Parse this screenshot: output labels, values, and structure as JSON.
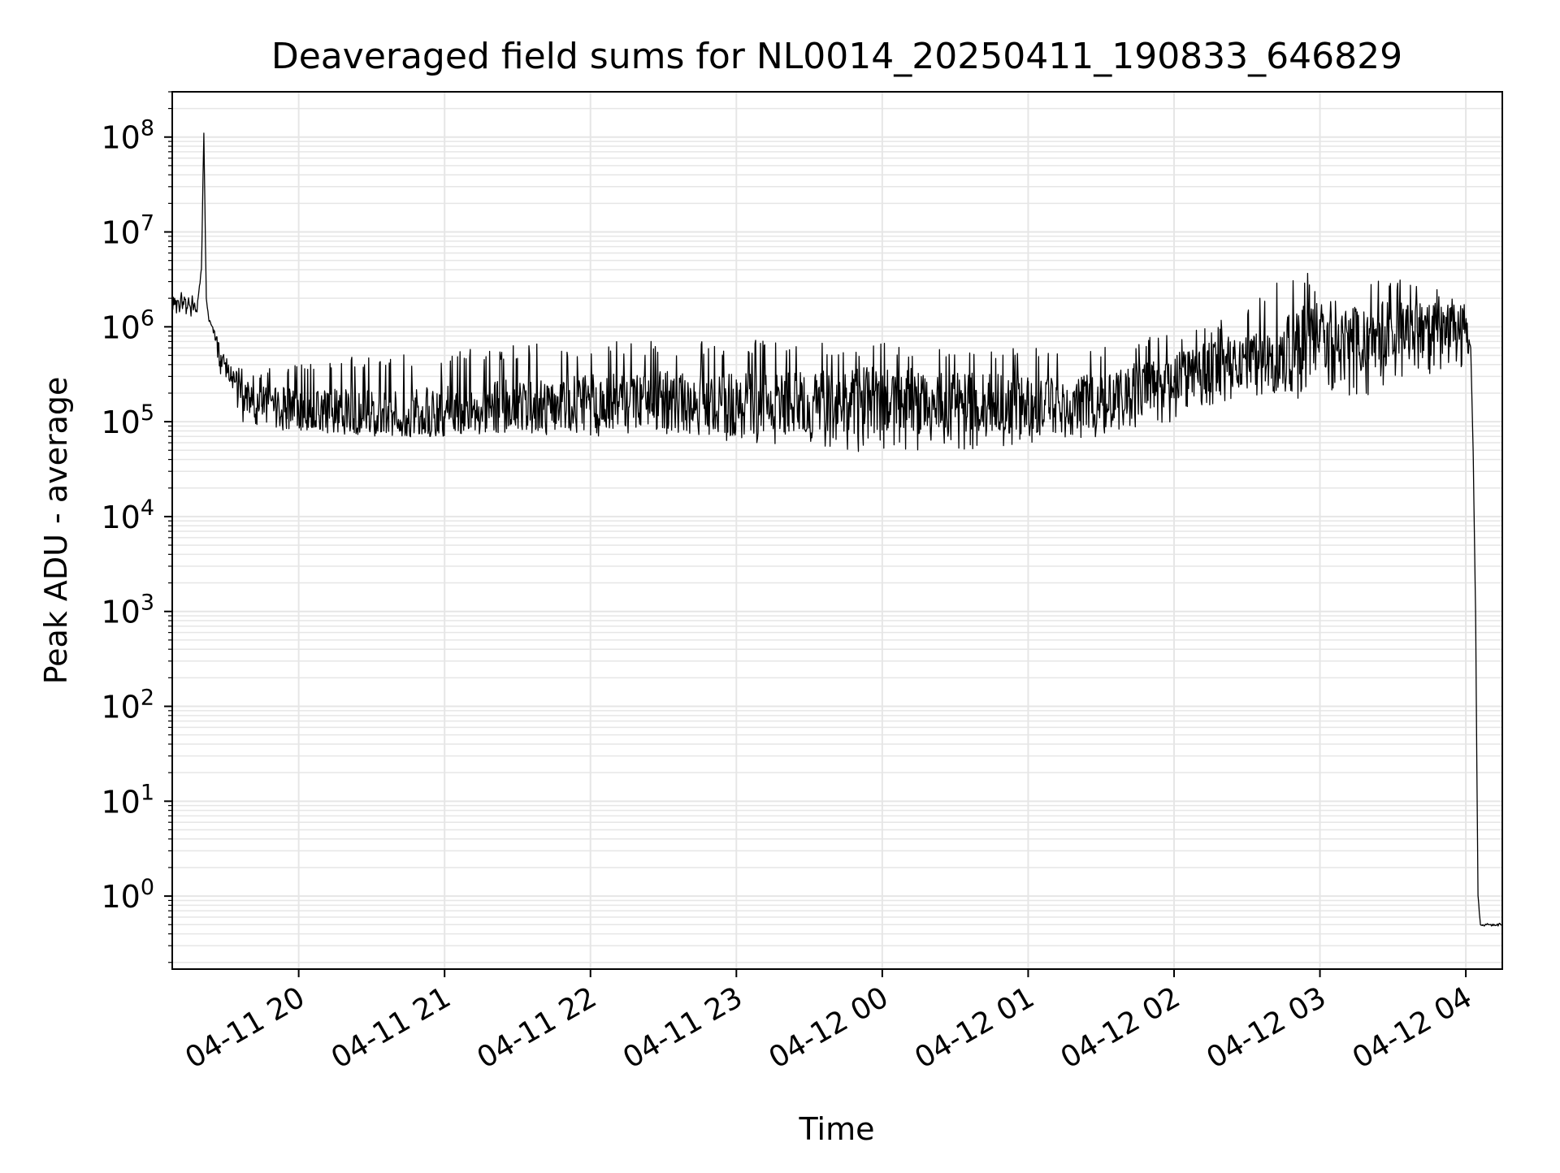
{
  "chart_data": {
    "type": "line",
    "title": "Deaveraged field sums for NL0014_20250411_190833_646829",
    "xlabel": "Time",
    "ylabel": "Peak ADU - average",
    "x_scale": "time",
    "y_scale": "log",
    "xlim": [
      "2025-04-11 19:08",
      "2025-04-12 04:15"
    ],
    "ylim": [
      0.17,
      300000000.0
    ],
    "grid": true,
    "line_color": "#000000",
    "grid_color": "#e6e6e6",
    "x_ticks": [
      {
        "t": "2025-04-11 20:00",
        "label": "04-11 20"
      },
      {
        "t": "2025-04-11 21:00",
        "label": "04-11 21"
      },
      {
        "t": "2025-04-11 22:00",
        "label": "04-11 22"
      },
      {
        "t": "2025-04-11 23:00",
        "label": "04-11 23"
      },
      {
        "t": "2025-04-12 00:00",
        "label": "04-12 00"
      },
      {
        "t": "2025-04-12 01:00",
        "label": "04-12 01"
      },
      {
        "t": "2025-04-12 02:00",
        "label": "04-12 02"
      },
      {
        "t": "2025-04-12 03:00",
        "label": "04-12 03"
      },
      {
        "t": "2025-04-12 04:00",
        "label": "04-12 04"
      }
    ],
    "y_ticks": [
      {
        "exp": 0,
        "base": "10",
        "sup": "0"
      },
      {
        "exp": 1,
        "base": "10",
        "sup": "1"
      },
      {
        "exp": 2,
        "base": "10",
        "sup": "2"
      },
      {
        "exp": 3,
        "base": "10",
        "sup": "3"
      },
      {
        "exp": 4,
        "base": "10",
        "sup": "4"
      },
      {
        "exp": 5,
        "base": "10",
        "sup": "5"
      },
      {
        "exp": 6,
        "base": "10",
        "sup": "6"
      },
      {
        "exp": 7,
        "base": "10",
        "sup": "7"
      },
      {
        "exp": 8,
        "base": "10",
        "sup": "8"
      }
    ],
    "series": [
      {
        "x": [
          "2025-04-11 19:08",
          "2025-04-11 19:12",
          "2025-04-11 19:15",
          "2025-04-11 19:18",
          "2025-04-11 19:20",
          "2025-04-11 19:21",
          "2025-04-11 19:22",
          "2025-04-11 19:23",
          "2025-04-11 19:25",
          "2025-04-11 19:28",
          "2025-04-11 19:32",
          "2025-04-11 19:36",
          "2025-04-11 19:40",
          "2025-04-11 19:45",
          "2025-04-11 19:55",
          "2025-04-11 20:10",
          "2025-04-11 20:30",
          "2025-04-11 21:00",
          "2025-04-11 21:30",
          "2025-04-11 22:00",
          "2025-04-11 22:30",
          "2025-04-11 23:00",
          "2025-04-11 23:30",
          "2025-04-12 00:00",
          "2025-04-12 00:30",
          "2025-04-12 01:00",
          "2025-04-12 01:30",
          "2025-04-12 02:00",
          "2025-04-12 02:20",
          "2025-04-12 02:40",
          "2025-04-12 02:52",
          "2025-04-12 03:00",
          "2025-04-12 03:20",
          "2025-04-12 03:40",
          "2025-04-12 03:55",
          "2025-04-12 04:00",
          "2025-04-12 04:02",
          "2025-04-12 04:03",
          "2025-04-12 04:04",
          "2025-04-12 04:05",
          "2025-04-12 04:06",
          "2025-04-12 04:15"
        ],
        "y": [
          1600000,
          1800000,
          1700000,
          1500000,
          4000000,
          110000000,
          2000000,
          1200000,
          900000,
          500000,
          300000,
          200000,
          160000,
          150000,
          140000,
          130000,
          120000,
          130000,
          150000,
          160000,
          170000,
          150000,
          160000,
          170000,
          160000,
          150000,
          160000,
          300000,
          400000,
          500000,
          600000,
          700000,
          800000,
          900000,
          1000000,
          1100000,
          600000,
          50000,
          1000,
          1,
          0.5,
          0.5
        ],
        "upper": [
          2000000,
          2400000,
          2300000,
          2000000,
          4000000,
          110000000,
          2000000,
          1200000,
          1000000,
          800000,
          600000,
          400000,
          350000,
          350000,
          400000,
          450000,
          500000,
          550000,
          650000,
          700000,
          700000,
          750000,
          700000,
          700000,
          650000,
          600000,
          650000,
          900000,
          1200000,
          2500000,
          6000000,
          2000000,
          3000000,
          3500000,
          2000000,
          1800000,
          600000,
          50000,
          1000,
          1,
          0.5,
          0.5
        ],
        "lower": [
          1300000,
          1400000,
          1300000,
          1200000,
          4000000,
          110000000,
          2000000,
          1200000,
          800000,
          300000,
          180000,
          100000,
          80000,
          80000,
          75000,
          75000,
          70000,
          70000,
          75000,
          70000,
          70000,
          60000,
          55000,
          45000,
          50000,
          55000,
          70000,
          100000,
          150000,
          200000,
          150000,
          200000,
          180000,
          300000,
          300000,
          400000,
          600000,
          50000,
          1000,
          1,
          0.5,
          0.5
        ]
      }
    ]
  }
}
